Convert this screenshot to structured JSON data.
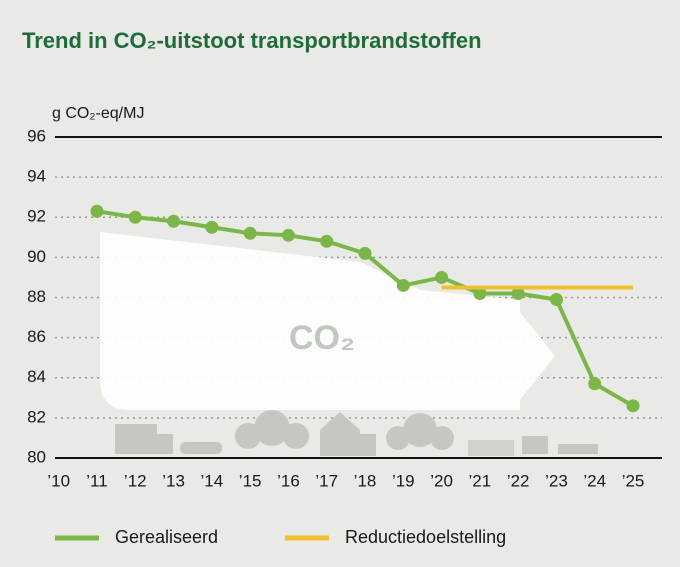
{
  "chart_data": {
    "type": "line",
    "title": "Trend in CO₂-uitstoot transportbrandstoffen",
    "y_label": "g CO₂-eq/MJ",
    "annotation": "CO₂",
    "categories": [
      "’10",
      "’11",
      "’12",
      "’13",
      "’14",
      "’15",
      "’16",
      "’17",
      "’18",
      "’19",
      "’20",
      "’21",
      "’22",
      "’23",
      "’24",
      "’25"
    ],
    "series": [
      {
        "name": "Gerealiseerd",
        "color": "#7ab648",
        "values": [
          null,
          92.3,
          92.0,
          91.8,
          91.5,
          91.2,
          91.1,
          90.8,
          90.2,
          88.6,
          89.0,
          88.2,
          88.2,
          87.9,
          83.7,
          82.6
        ]
      },
      {
        "name": "Reductiedoelstelling",
        "color": "#f0c030",
        "values": [
          null,
          null,
          null,
          null,
          null,
          null,
          null,
          null,
          null,
          null,
          88.5,
          88.5,
          88.5,
          88.5,
          88.5,
          88.5
        ]
      }
    ],
    "ylim": [
      80,
      96
    ],
    "yticks": [
      80,
      82,
      84,
      86,
      88,
      90,
      92,
      94,
      96
    ],
    "grid": true
  }
}
